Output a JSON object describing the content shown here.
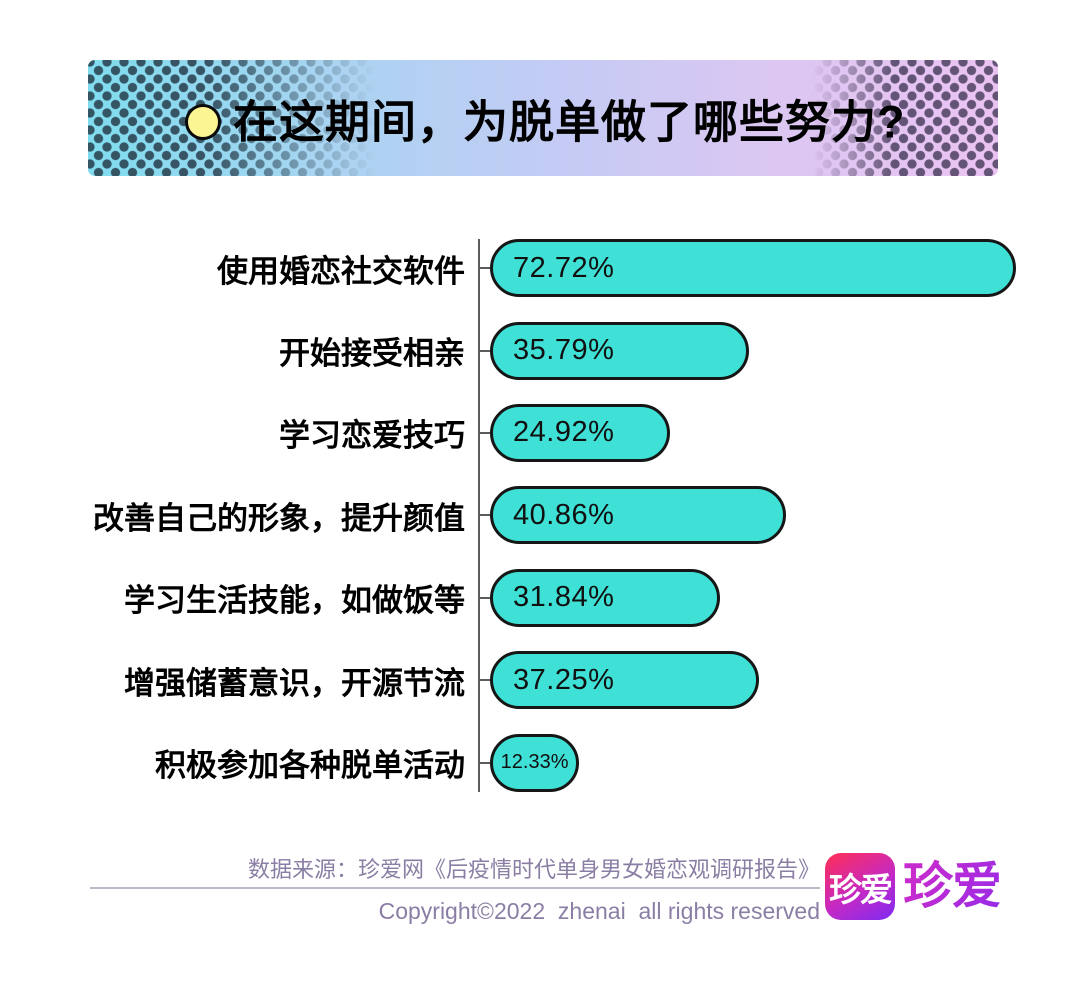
{
  "title": {
    "text": "在这期间，为脱单做了哪些努力?"
  },
  "chart_data": {
    "type": "bar",
    "orientation": "horizontal",
    "categories": [
      "使用婚恋社交软件",
      "开始接受相亲",
      "学习恋爱技巧",
      "改善自己的形象，提升颜值",
      "学习生活技能，如做饭等",
      "增强储蓄意识，开源节流",
      "积极参加各种脱单活动"
    ],
    "values": [
      72.72,
      35.79,
      24.92,
      40.86,
      31.84,
      37.25,
      12.33
    ],
    "value_labels": [
      "72.72%",
      "35.79%",
      "24.92%",
      "40.86%",
      "31.84%",
      "37.25%",
      "12.33%"
    ],
    "value_label_position": "inside-start",
    "xlim": [
      0,
      75
    ],
    "grid": false,
    "legend": false,
    "bar_fill": "#3fe0d6",
    "bar_border": "#161616"
  },
  "footer": {
    "source": "数据来源：珍爱网《后疫情时代单身男女婚恋观调研报告》",
    "copyright": "Copyright©2022  zhenai  all rights reserved",
    "logo_icon_text": "珍爱",
    "logo_wordmark": "珍爱"
  },
  "colors": {
    "banner_gradient_left": "#7fdcee",
    "banner_gradient_mid": "#c4cbf4",
    "banner_gradient_right": "#ebc3f3",
    "banner_dot_color": "#23374a",
    "bullet_fill": "#fbf593",
    "bar_fill": "#3fe0d6",
    "bar_border": "#161616",
    "axis_color": "#5c5c5c",
    "footer_text": "#8b7ea4",
    "logo_gradient_top": "#fb2e5f",
    "logo_gradient_bottom": "#7e2bf2",
    "wordmark_color": "#ac2bd9"
  }
}
